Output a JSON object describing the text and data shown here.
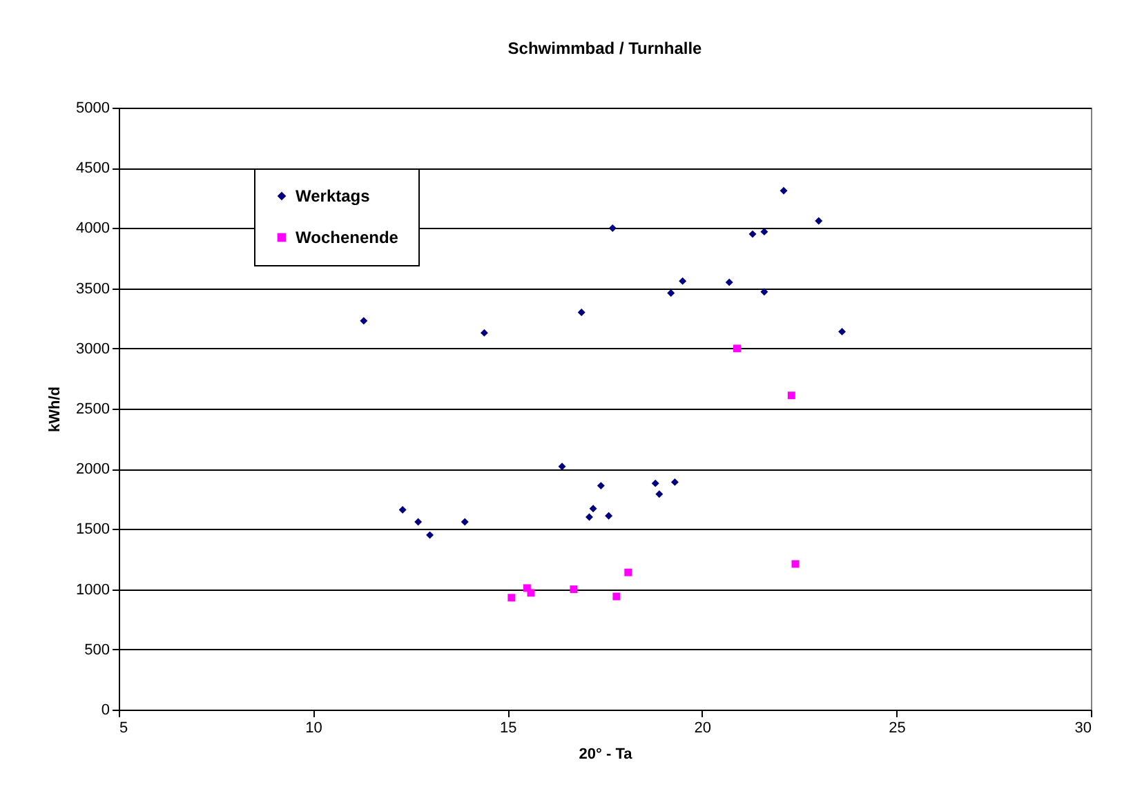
{
  "chart_data": {
    "type": "scatter",
    "title": "Schwimmbad / Turnhalle",
    "xlabel": "20° - Ta",
    "ylabel": "kWh/d",
    "xlim": [
      5,
      30
    ],
    "xticks": [
      5,
      10,
      15,
      20,
      25,
      30
    ],
    "ylim": [
      0,
      5000
    ],
    "yticks": [
      0,
      500,
      1000,
      1500,
      2000,
      2500,
      3000,
      3500,
      4000,
      4500,
      5000
    ],
    "grid": "y",
    "legend": "top left",
    "series": [
      {
        "name": "Werktags",
        "color": "#000080",
        "marker": "diamond",
        "x": [
          11.3,
          12.3,
          12.7,
          13.0,
          13.9,
          14.4,
          16.4,
          16.9,
          17.1,
          17.2,
          17.4,
          17.6,
          17.7,
          18.8,
          18.9,
          19.2,
          19.3,
          19.5,
          20.7,
          21.3,
          21.6,
          21.6,
          22.1,
          23.0,
          23.6
        ],
        "values": [
          3230,
          1660,
          1560,
          1450,
          1560,
          3130,
          2020,
          3300,
          1600,
          1670,
          1860,
          1610,
          4000,
          1880,
          1790,
          3460,
          1890,
          3560,
          3550,
          3950,
          3970,
          3470,
          4310,
          4060,
          3140
        ]
      },
      {
        "name": "Wochenende",
        "color": "#ff00ff",
        "marker": "square",
        "x": [
          15.1,
          15.5,
          15.6,
          16.7,
          17.8,
          18.1,
          20.9,
          22.3,
          22.4
        ],
        "values": [
          930,
          1010,
          970,
          1000,
          940,
          1140,
          3000,
          2610,
          1210
        ]
      }
    ]
  }
}
